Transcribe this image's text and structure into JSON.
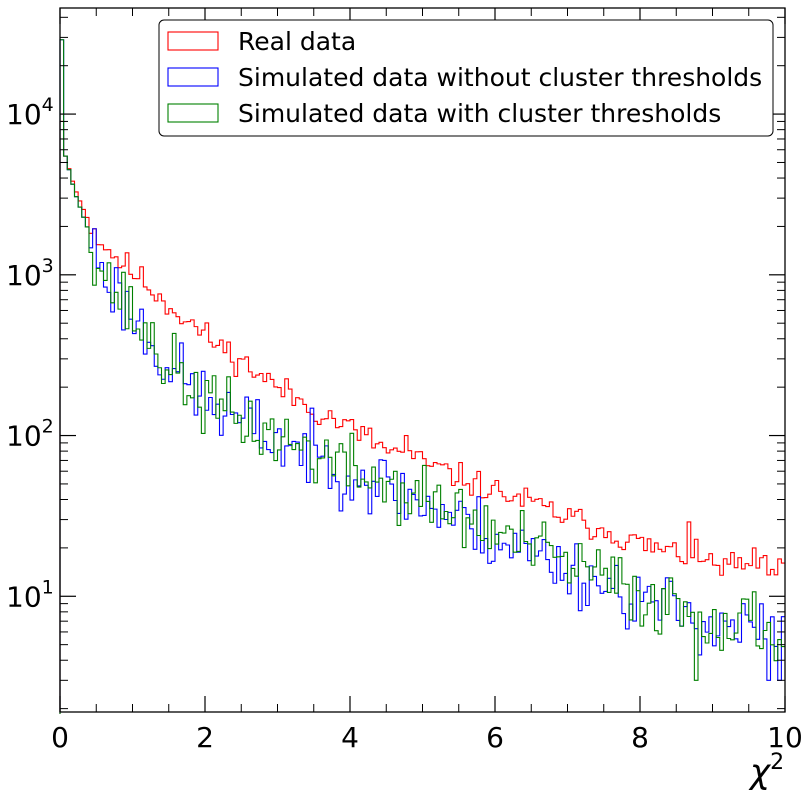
{
  "chart_data": {
    "type": "step-histogram",
    "xlabel": "χ",
    "xlabel_superscript": "2",
    "ylabel": "",
    "title": "",
    "x_range": [
      0,
      10
    ],
    "y_range_log10": [
      0.28,
      4.66
    ],
    "y_scale": "log",
    "x_ticks": [
      0,
      2,
      4,
      6,
      8,
      10
    ],
    "x_tick_labels": [
      "0",
      "2",
      "4",
      "6",
      "8",
      "10"
    ],
    "y_tick_labels": [
      {
        "base": "10",
        "exp": "1",
        "value": 10
      },
      {
        "base": "10",
        "exp": "2",
        "value": 100
      },
      {
        "base": "10",
        "exp": "3",
        "value": 1000
      },
      {
        "base": "10",
        "exp": "4",
        "value": 10000
      }
    ],
    "legend_placement": "top-right",
    "bin_width": 0.05,
    "series": [
      {
        "name": "Real data",
        "color": "#ff0000",
        "anchors": [
          [
            0.0,
            7200
          ],
          [
            0.1,
            5000
          ],
          [
            0.2,
            3500
          ],
          [
            0.3,
            2700
          ],
          [
            0.4,
            2150
          ],
          [
            0.5,
            1800
          ],
          [
            0.6,
            1550
          ],
          [
            0.8,
            1250
          ],
          [
            1.0,
            1050
          ],
          [
            1.2,
            870
          ],
          [
            1.5,
            650
          ],
          [
            2.0,
            420
          ],
          [
            2.5,
            290
          ],
          [
            3.0,
            200
          ],
          [
            3.5,
            145
          ],
          [
            4.0,
            112
          ],
          [
            4.5,
            82
          ],
          [
            5.0,
            68
          ],
          [
            5.5,
            55
          ],
          [
            6.0,
            45
          ],
          [
            6.5,
            38
          ],
          [
            7.0,
            31
          ],
          [
            7.5,
            26
          ],
          [
            8.0,
            21
          ],
          [
            9.0,
            16
          ],
          [
            10.0,
            14
          ]
        ],
        "first_bin": 9000,
        "noise": 0.1,
        "seed": 11,
        "spikes": [
          [
            4.75,
            100
          ],
          [
            8.65,
            29
          ],
          [
            9.55,
            20
          ]
        ]
      },
      {
        "name": "Simulated data without cluster thresholds",
        "color": "#0000ff",
        "anchors": [
          [
            0.0,
            7200
          ],
          [
            0.1,
            5000
          ],
          [
            0.2,
            3300
          ],
          [
            0.3,
            2450
          ],
          [
            0.4,
            1850
          ],
          [
            0.5,
            1380
          ],
          [
            0.6,
            1050
          ],
          [
            0.8,
            760
          ],
          [
            1.0,
            560
          ],
          [
            1.2,
            420
          ],
          [
            1.5,
            270
          ],
          [
            2.0,
            165
          ],
          [
            2.5,
            120
          ],
          [
            3.0,
            95
          ],
          [
            3.5,
            75
          ],
          [
            4.0,
            60
          ],
          [
            4.5,
            48
          ],
          [
            5.0,
            38
          ],
          [
            5.5,
            30
          ],
          [
            6.0,
            23
          ],
          [
            6.5,
            19
          ],
          [
            7.0,
            15
          ],
          [
            7.5,
            12
          ],
          [
            8.0,
            9.5
          ],
          [
            9.0,
            7
          ],
          [
            10.0,
            5.5
          ]
        ],
        "first_bin": 29000,
        "noise": 0.24,
        "seed": 23,
        "spikes": [
          [
            9.75,
            3
          ],
          [
            9.95,
            3
          ]
        ]
      },
      {
        "name": "Simulated data with cluster thresholds",
        "color": "#008000",
        "anchors": [
          [
            0.0,
            7200
          ],
          [
            0.1,
            5000
          ],
          [
            0.2,
            3300
          ],
          [
            0.3,
            2450
          ],
          [
            0.4,
            1850
          ],
          [
            0.5,
            1380
          ],
          [
            0.6,
            1050
          ],
          [
            0.8,
            760
          ],
          [
            1.0,
            560
          ],
          [
            1.2,
            420
          ],
          [
            1.5,
            270
          ],
          [
            2.0,
            165
          ],
          [
            2.5,
            122
          ],
          [
            3.0,
            97
          ],
          [
            3.5,
            78
          ],
          [
            4.0,
            62
          ],
          [
            4.5,
            50
          ],
          [
            5.0,
            40
          ],
          [
            5.5,
            32
          ],
          [
            6.0,
            25
          ],
          [
            6.5,
            20
          ],
          [
            7.0,
            16
          ],
          [
            7.5,
            13
          ],
          [
            8.0,
            10
          ],
          [
            9.0,
            7.5
          ],
          [
            10.0,
            6
          ]
        ],
        "first_bin": 29000,
        "noise": 0.24,
        "seed": 37,
        "spikes": [
          [
            8.75,
            3
          ]
        ]
      }
    ]
  }
}
